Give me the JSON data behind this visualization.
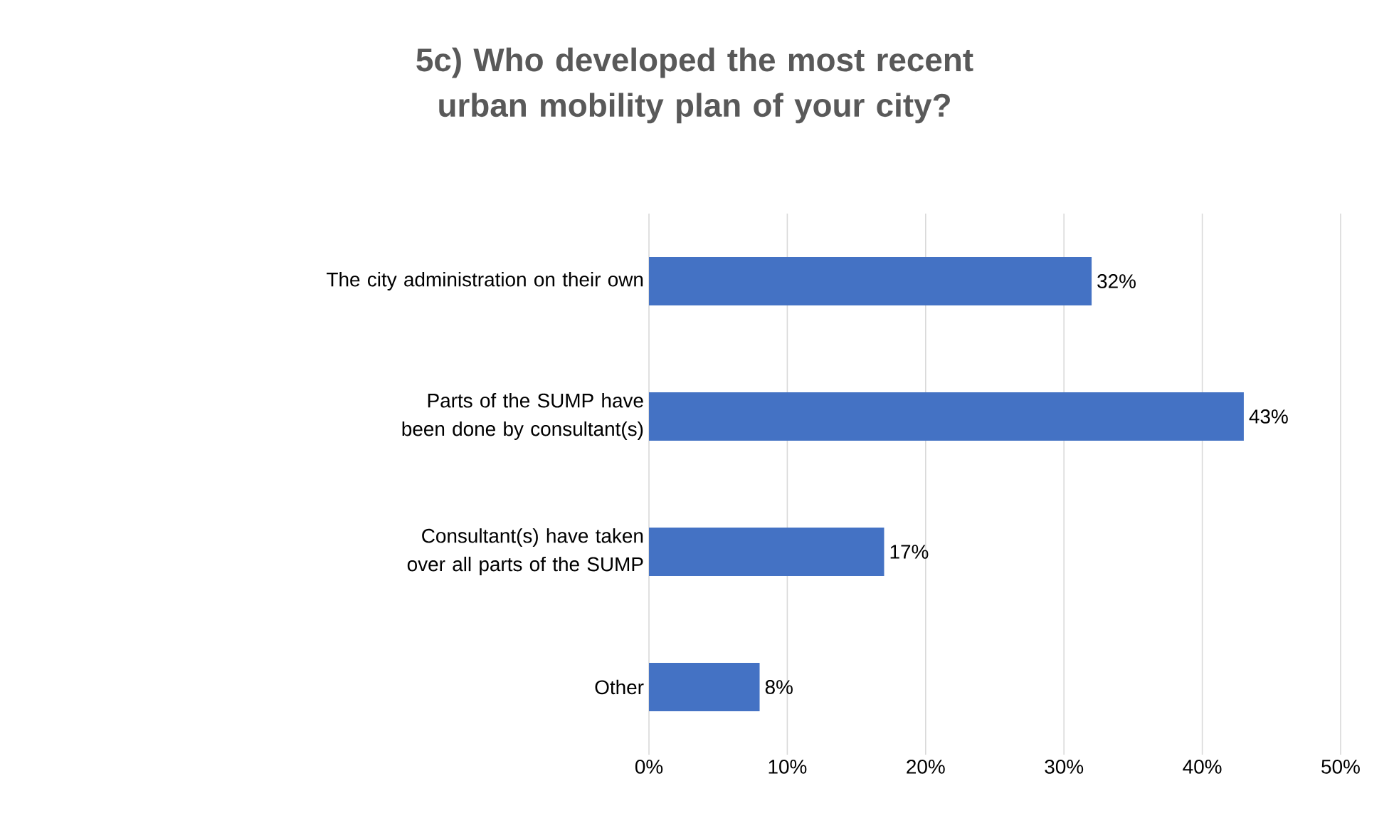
{
  "chart_data": {
    "type": "bar",
    "orientation": "horizontal",
    "title": "5c) Who developed the most recent urban mobility plan of your city?",
    "categories": [
      "The city administration on their own",
      "Parts of the SUMP have been done by consultant(s)",
      "Consultant(s) have taken over all parts of the SUMP",
      "Other"
    ],
    "values": [
      32,
      43,
      17,
      8
    ],
    "value_labels": [
      "32%",
      "43%",
      "17%",
      "8%"
    ],
    "color": "#4472c4",
    "xlim": [
      0,
      50
    ],
    "xticks": [
      {
        "value": 0,
        "label": "0%"
      },
      {
        "value": 10,
        "label": "10%"
      },
      {
        "value": 20,
        "label": "20%"
      },
      {
        "value": 30,
        "label": "30%"
      },
      {
        "value": 40,
        "label": "40%"
      },
      {
        "value": 50,
        "label": "50%"
      }
    ],
    "grid": "x"
  }
}
